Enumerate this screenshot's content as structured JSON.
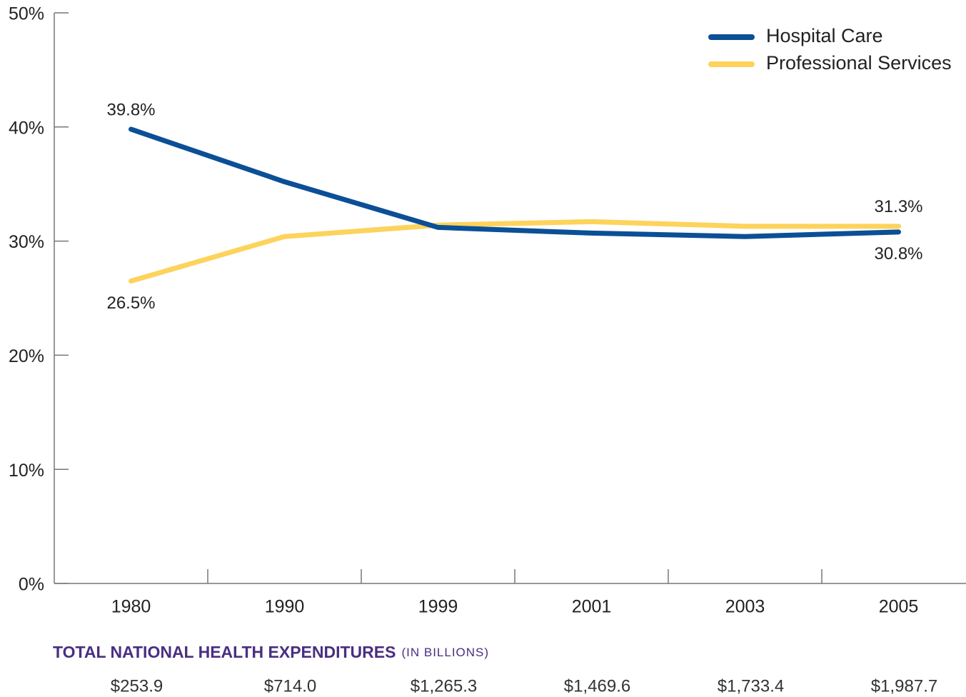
{
  "chart_data": {
    "type": "line",
    "categories": [
      "1980",
      "1990",
      "1999",
      "2001",
      "2003",
      "2005"
    ],
    "series": [
      {
        "name": "Hospital Care",
        "color": "#0b4f96",
        "values": [
          39.8,
          35.2,
          31.2,
          30.7,
          30.4,
          30.8
        ],
        "value_labels": [
          "39.8%",
          null,
          null,
          null,
          null,
          "30.8%"
        ]
      },
      {
        "name": "Professional Services",
        "color": "#fdd35c",
        "values": [
          26.5,
          30.4,
          31.4,
          31.7,
          31.3,
          31.3
        ],
        "value_labels": [
          "26.5%",
          null,
          null,
          null,
          null,
          "31.3%"
        ]
      }
    ],
    "ylim": [
      0,
      50
    ],
    "yticks": [
      {
        "value": 0,
        "label": "0%"
      },
      {
        "value": 10,
        "label": "10%"
      },
      {
        "value": 20,
        "label": "20%"
      },
      {
        "value": 30,
        "label": "30%"
      },
      {
        "value": 40,
        "label": "40%"
      },
      {
        "value": 50,
        "label": "50%"
      }
    ],
    "legend": "top-right",
    "footer": {
      "title": "TOTAL NATIONAL HEALTH EXPENDITURES",
      "subtitle": "(IN BILLIONS)",
      "values": [
        "$253.9",
        "$714.0",
        "$1,265.3",
        "$1,469.6",
        "$1,733.4",
        "$1,987.7"
      ]
    }
  }
}
